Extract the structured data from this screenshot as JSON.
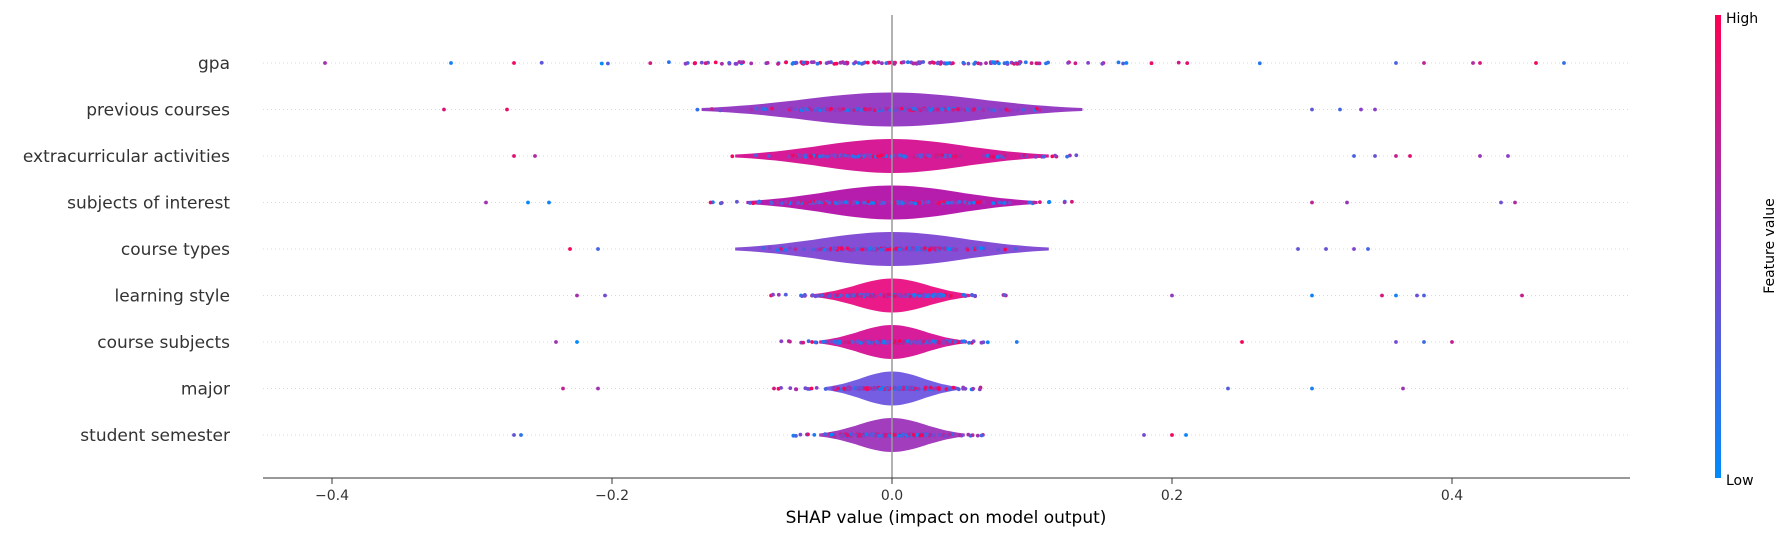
{
  "chart_data": {
    "type": "violin",
    "xlabel": "SHAP value (impact on model output)",
    "x_ticks": [
      -0.4,
      -0.2,
      0.0,
      0.2,
      0.4
    ],
    "x_tick_labels": [
      "−0.4",
      "−0.2",
      "0.0",
      "0.2",
      "0.4"
    ],
    "xlim": [
      -0.45,
      0.525
    ],
    "grid": false,
    "colorbar": {
      "label": "Feature value",
      "high_label": "High",
      "low_label": "Low",
      "low_color": "#008bfb",
      "high_color": "#ff0052"
    },
    "features": [
      {
        "name": "gpa",
        "x_min": -0.405,
        "x_max": 0.48,
        "spread": 0.42,
        "outlier_points": [
          -0.405,
          -0.315,
          -0.27,
          0.36,
          0.38,
          0.415,
          0.42,
          0.46,
          0.48
        ]
      },
      {
        "name": "previous courses",
        "x_min": -0.32,
        "x_max": 0.345,
        "spread": 0.25,
        "outlier_points": [
          -0.32,
          -0.275,
          0.3,
          0.32,
          0.335,
          0.345
        ]
      },
      {
        "name": "extracurricular activities",
        "x_min": -0.27,
        "x_max": 0.44,
        "spread": 0.24,
        "outlier_points": [
          -0.27,
          -0.255,
          0.33,
          0.345,
          0.36,
          0.37,
          0.42,
          0.44
        ]
      },
      {
        "name": "subjects of interest",
        "x_min": -0.29,
        "x_max": 0.445,
        "spread": 0.22,
        "outlier_points": [
          -0.29,
          -0.26,
          -0.245,
          0.3,
          0.325,
          0.435,
          0.445
        ]
      },
      {
        "name": "course types",
        "x_min": -0.23,
        "x_max": 0.34,
        "spread": 0.18,
        "outlier_points": [
          -0.23,
          -0.21,
          0.29,
          0.31,
          0.33,
          0.34
        ]
      },
      {
        "name": "learning style",
        "x_min": -0.225,
        "x_max": 0.45,
        "spread": 0.14,
        "outlier_points": [
          -0.225,
          -0.205,
          0.2,
          0.3,
          0.35,
          0.36,
          0.375,
          0.38,
          0.45
        ]
      },
      {
        "name": "course subjects",
        "x_min": -0.24,
        "x_max": 0.4,
        "spread": 0.15,
        "outlier_points": [
          -0.24,
          -0.225,
          0.25,
          0.36,
          0.38,
          0.4
        ]
      },
      {
        "name": "major",
        "x_min": -0.235,
        "x_max": 0.365,
        "spread": 0.15,
        "outlier_points": [
          -0.235,
          -0.21,
          0.24,
          0.3,
          0.365
        ]
      },
      {
        "name": "student semester",
        "x_min": -0.27,
        "x_max": 0.21,
        "spread": 0.13,
        "outlier_points": [
          -0.27,
          -0.265,
          0.18,
          0.2,
          0.21
        ]
      }
    ]
  }
}
